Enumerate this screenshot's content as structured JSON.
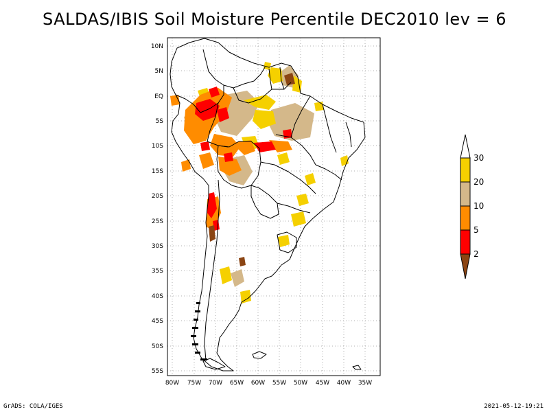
{
  "title": "SALDAS/IBIS Soil Moisture Percentile DEC2010 lev = 6",
  "lat_labels": [
    "10N",
    "5N",
    "EQ",
    "5S",
    "10S",
    "15S",
    "20S",
    "25S",
    "30S",
    "35S",
    "40S",
    "45S",
    "50S",
    "55S"
  ],
  "lon_labels": [
    "80W",
    "75W",
    "70W",
    "65W",
    "60W",
    "55W",
    "50W",
    "45W",
    "40W",
    "35W"
  ],
  "legend": {
    "labels": [
      "30",
      "20",
      "10",
      "5",
      "2"
    ],
    "colors": {
      "above_30": "#ffffff",
      "20_30": "#f5d000",
      "10_20": "#d4b88a",
      "5_10": "#ff8c00",
      "2_5": "#ff0000",
      "below_2": "#8b4513"
    }
  },
  "footer": {
    "left": "GrADS: COLA/IGES",
    "right": "2021-05-12-19:21"
  }
}
